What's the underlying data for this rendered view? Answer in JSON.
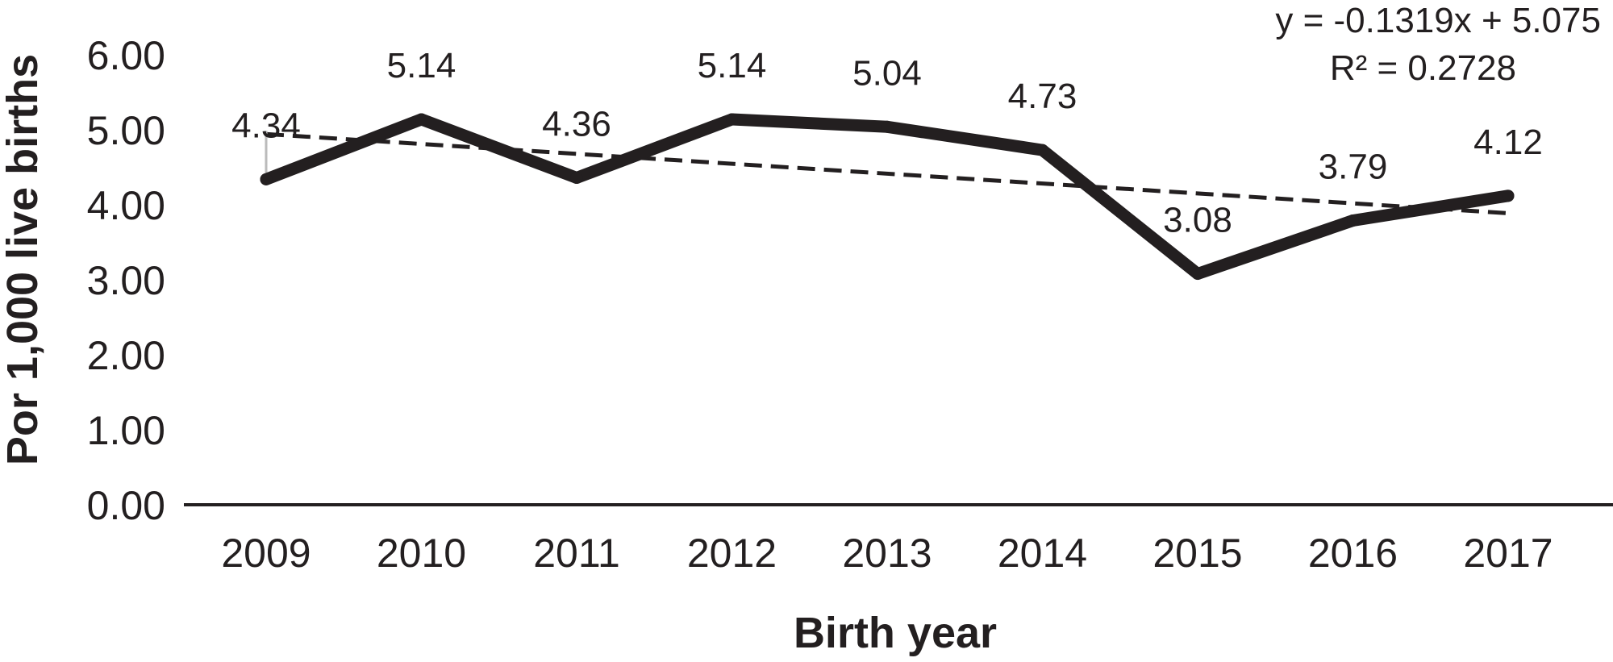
{
  "chart_data": {
    "type": "line",
    "xlabel": "Birth year",
    "ylabel": "Por 1,000 live births",
    "categories": [
      "2009",
      "2010",
      "2011",
      "2012",
      "2013",
      "2014",
      "2015",
      "2016",
      "2017"
    ],
    "series": [
      {
        "values": [
          4.34,
          5.14,
          4.36,
          5.14,
          5.04,
          4.73,
          3.08,
          3.79,
          4.12
        ],
        "data_labels": [
          "4.34",
          "5.14",
          "4.36",
          "5.14",
          "5.04",
          "4.73",
          "3.08",
          "3.79",
          "4.12"
        ],
        "style": "solid",
        "color": "#231f20"
      }
    ],
    "trendline": {
      "type": "linear",
      "slope": -0.1319,
      "intercept": 5.075,
      "style": "dashed",
      "equation_label": "y = -0.1319x + 5.075",
      "r2_label": "R² = 0.2728"
    },
    "ylim": [
      0,
      6
    ],
    "yticks": [
      "0.00",
      "1.00",
      "2.00",
      "3.00",
      "4.00",
      "5.00",
      "6.00"
    ],
    "grid": false,
    "legend": "none"
  }
}
